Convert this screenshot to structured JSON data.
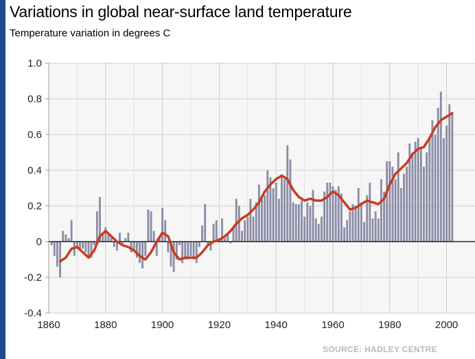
{
  "chart_data": {
    "type": "bar",
    "title": "Variations in global near-surface land temperature",
    "subtitle": "Temperature variation in degrees C",
    "source": "SOURCE: HADLEY CENTRE",
    "xlim": [
      1860,
      2010
    ],
    "ylim": [
      -0.4,
      1.0
    ],
    "x_ticks": [
      1860,
      1880,
      1900,
      1920,
      1940,
      1960,
      1980,
      2000
    ],
    "y_ticks": [
      {
        "value": 1.0,
        "label": "1.0"
      },
      {
        "value": 0.8,
        "label": "0.8"
      },
      {
        "value": 0.6,
        "label": "0.6"
      },
      {
        "value": 0.4,
        "label": "0.4"
      },
      {
        "value": 0.2,
        "label": "0.2"
      },
      {
        "value": 0.0,
        "label": "0"
      },
      {
        "value": -0.2,
        "label": "-0.2"
      },
      {
        "value": -0.4,
        "label": "-0.4"
      }
    ],
    "grid": true,
    "series": [
      {
        "kind": "bar",
        "color": "#8c8ca8",
        "x": [
          1861,
          1862,
          1863,
          1864,
          1865,
          1866,
          1867,
          1868,
          1869,
          1870,
          1871,
          1872,
          1873,
          1874,
          1875,
          1876,
          1877,
          1878,
          1879,
          1880,
          1881,
          1882,
          1883,
          1884,
          1885,
          1886,
          1887,
          1888,
          1889,
          1890,
          1891,
          1892,
          1893,
          1894,
          1895,
          1896,
          1897,
          1898,
          1899,
          1900,
          1901,
          1902,
          1903,
          1904,
          1905,
          1906,
          1907,
          1908,
          1909,
          1910,
          1911,
          1912,
          1913,
          1914,
          1915,
          1916,
          1917,
          1918,
          1919,
          1920,
          1921,
          1922,
          1923,
          1924,
          1925,
          1926,
          1927,
          1928,
          1929,
          1930,
          1931,
          1932,
          1933,
          1934,
          1935,
          1936,
          1937,
          1938,
          1939,
          1940,
          1941,
          1942,
          1943,
          1944,
          1945,
          1946,
          1947,
          1948,
          1949,
          1950,
          1951,
          1952,
          1953,
          1954,
          1955,
          1956,
          1957,
          1958,
          1959,
          1960,
          1961,
          1962,
          1963,
          1964,
          1965,
          1966,
          1967,
          1968,
          1969,
          1970,
          1971,
          1972,
          1973,
          1974,
          1975,
          1976,
          1977,
          1978,
          1979,
          1980,
          1981,
          1982,
          1983,
          1984,
          1985,
          1986,
          1987,
          1988,
          1989,
          1990,
          1991,
          1992,
          1993,
          1994,
          1995,
          1996,
          1997,
          1998,
          1999,
          2000,
          2001,
          2002
        ],
        "values": [
          -0.02,
          -0.08,
          -0.14,
          -0.2,
          0.06,
          0.04,
          0.02,
          0.12,
          -0.08,
          -0.04,
          -0.05,
          -0.04,
          -0.06,
          -0.08,
          -0.09,
          -0.02,
          0.17,
          0.25,
          0.05,
          0.08,
          0.05,
          0.02,
          -0.03,
          -0.05,
          0.05,
          -0.01,
          0.02,
          0.05,
          -0.06,
          -0.05,
          -0.09,
          -0.12,
          -0.15,
          -0.08,
          0.18,
          0.17,
          0.06,
          -0.08,
          0.02,
          0.19,
          0.12,
          -0.06,
          -0.14,
          -0.17,
          -0.1,
          -0.02,
          -0.12,
          -0.1,
          -0.1,
          -0.08,
          -0.1,
          -0.12,
          -0.03,
          0.09,
          0.21,
          -0.02,
          -0.05,
          0.1,
          0.12,
          0.02,
          0.13,
          0.02,
          0.05,
          -0.01,
          0.08,
          0.24,
          0.2,
          0.06,
          0.12,
          0.14,
          0.24,
          0.14,
          0.22,
          0.32,
          0.24,
          0.26,
          0.4,
          0.36,
          0.3,
          0.33,
          0.24,
          0.37,
          0.35,
          0.54,
          0.46,
          0.22,
          0.21,
          0.21,
          0.23,
          0.14,
          0.22,
          0.2,
          0.29,
          0.13,
          0.1,
          0.14,
          0.28,
          0.33,
          0.33,
          0.31,
          0.29,
          0.31,
          0.27,
          0.08,
          0.12,
          0.17,
          0.21,
          0.2,
          0.3,
          0.22,
          0.11,
          0.26,
          0.33,
          0.13,
          0.17,
          0.13,
          0.35,
          0.28,
          0.45,
          0.45,
          0.42,
          0.35,
          0.5,
          0.3,
          0.38,
          0.42,
          0.55,
          0.5,
          0.56,
          0.58,
          0.53,
          0.42,
          0.5,
          0.58,
          0.68,
          0.6,
          0.75,
          0.84,
          0.58,
          0.65,
          0.77,
          0.72
        ]
      },
      {
        "kind": "line",
        "color": "#c83c1e",
        "x": [
          1864,
          1866,
          1868,
          1870,
          1872,
          1874,
          1876,
          1878,
          1880,
          1882,
          1884,
          1886,
          1888,
          1890,
          1892,
          1894,
          1896,
          1898,
          1900,
          1902,
          1904,
          1906,
          1908,
          1910,
          1912,
          1914,
          1916,
          1918,
          1920,
          1922,
          1924,
          1926,
          1928,
          1930,
          1932,
          1934,
          1936,
          1938,
          1940,
          1942,
          1944,
          1946,
          1948,
          1950,
          1952,
          1954,
          1956,
          1958,
          1960,
          1962,
          1964,
          1966,
          1968,
          1970,
          1972,
          1974,
          1976,
          1978,
          1980,
          1982,
          1984,
          1986,
          1988,
          1990,
          1992,
          1994,
          1996,
          1998,
          2000,
          2002
        ],
        "values": [
          -0.11,
          -0.09,
          -0.04,
          -0.03,
          -0.06,
          -0.09,
          -0.05,
          0.03,
          0.06,
          0.03,
          0.0,
          -0.02,
          -0.03,
          -0.05,
          -0.08,
          -0.1,
          -0.06,
          0.0,
          0.05,
          0.03,
          -0.06,
          -0.1,
          -0.09,
          -0.09,
          -0.09,
          -0.06,
          -0.02,
          0.0,
          0.01,
          0.03,
          0.06,
          0.1,
          0.13,
          0.15,
          0.18,
          0.22,
          0.28,
          0.32,
          0.35,
          0.37,
          0.35,
          0.29,
          0.25,
          0.23,
          0.24,
          0.23,
          0.23,
          0.25,
          0.28,
          0.26,
          0.22,
          0.18,
          0.19,
          0.21,
          0.23,
          0.22,
          0.21,
          0.24,
          0.32,
          0.38,
          0.41,
          0.44,
          0.49,
          0.52,
          0.53,
          0.58,
          0.64,
          0.68,
          0.7,
          0.72
        ]
      }
    ]
  }
}
